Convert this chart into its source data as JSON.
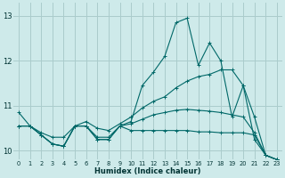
{
  "xlabel": "Humidex (Indice chaleur)",
  "background_color": "#ceeaea",
  "grid_color": "#aacccc",
  "line_color": "#006868",
  "xlim": [
    -0.5,
    23.5
  ],
  "ylim": [
    9.8,
    13.3
  ],
  "yticks": [
    10,
    11,
    12,
    13
  ],
  "xticks": [
    0,
    1,
    2,
    3,
    4,
    5,
    6,
    7,
    8,
    9,
    10,
    11,
    12,
    13,
    14,
    15,
    16,
    17,
    18,
    19,
    20,
    21,
    22,
    23
  ],
  "series": [
    [
      10.85,
      10.55,
      10.35,
      10.15,
      10.1,
      10.55,
      10.55,
      10.25,
      10.25,
      10.55,
      10.65,
      11.45,
      11.75,
      12.1,
      12.85,
      12.95,
      11.9,
      12.4,
      12.0,
      10.75,
      11.45,
      10.25,
      9.9,
      9.8
    ],
    [
      10.55,
      10.55,
      10.4,
      10.3,
      10.3,
      10.55,
      10.65,
      10.5,
      10.45,
      10.6,
      10.75,
      10.95,
      11.1,
      11.2,
      11.4,
      11.55,
      11.65,
      11.7,
      11.8,
      11.8,
      11.45,
      10.75,
      9.9,
      9.8
    ],
    [
      10.55,
      10.55,
      10.35,
      10.15,
      10.1,
      10.55,
      10.55,
      10.25,
      10.25,
      10.55,
      10.45,
      10.45,
      10.45,
      10.45,
      10.45,
      10.45,
      10.42,
      10.42,
      10.4,
      10.4,
      10.4,
      10.35,
      9.9,
      9.8
    ],
    [
      10.55,
      10.55,
      10.35,
      10.15,
      10.1,
      10.55,
      10.55,
      10.3,
      10.3,
      10.55,
      10.6,
      10.7,
      10.8,
      10.85,
      10.9,
      10.92,
      10.9,
      10.88,
      10.85,
      10.8,
      10.75,
      10.4,
      9.9,
      9.8
    ]
  ]
}
